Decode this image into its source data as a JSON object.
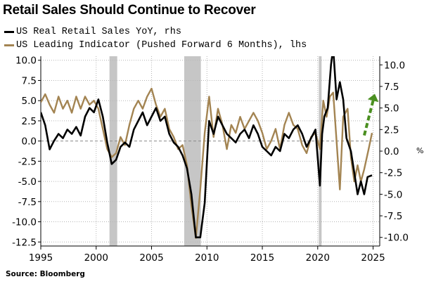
{
  "title": "Retail Sales Should Continue to Recover",
  "source": "Source: Bloomberg",
  "chart_data": {
    "type": "line",
    "title": "Retail Sales Should Continue to Recover",
    "xlim": [
      1995,
      2025.6
    ],
    "x_ticks": [
      1995,
      2000,
      2005,
      2010,
      2015,
      2020,
      2025
    ],
    "left_axis": {
      "ylim": [
        -13,
        10.5
      ],
      "ticks": [
        10.0,
        7.5,
        5.0,
        2.5,
        0.0,
        -2.5,
        -5.0,
        -7.5,
        -10.0,
        -12.5
      ],
      "tick_labels": [
        "10.0",
        "7.5",
        "5.0",
        "2.5",
        "0.0",
        "-2.5",
        "-5.0",
        "-7.5",
        "-10.0",
        "-12.5"
      ]
    },
    "right_axis": {
      "ylim": [
        -11.0,
        11.0
      ],
      "ticks": [
        10.0,
        7.5,
        5.0,
        2.5,
        0.0,
        -2.5,
        -5.0,
        -7.5,
        -10.0
      ],
      "tick_labels": [
        "10.0",
        "7.5",
        "5.0",
        "2.5",
        "0.0",
        "-2.5",
        "-5.0",
        "-7.5",
        "-10.0"
      ],
      "unit": "%"
    },
    "zero_line": 0,
    "grid": true,
    "recessions": [
      [
        2001.2,
        2001.9
      ],
      [
        2007.95,
        2009.45
      ],
      [
        2020.1,
        2020.35
      ]
    ],
    "series": [
      {
        "name": "US Real Retail Sales YoY, rhs",
        "axis": "right",
        "color": "#000000",
        "x": [
          1995.0,
          1995.4,
          1995.8,
          1996.2,
          1996.6,
          1997.0,
          1997.4,
          1997.8,
          1998.2,
          1998.6,
          1999.0,
          1999.4,
          1999.8,
          2000.2,
          2000.6,
          2001.0,
          2001.4,
          2001.8,
          2002.2,
          2002.6,
          2003.0,
          2003.4,
          2003.8,
          2004.2,
          2004.6,
          2005.0,
          2005.4,
          2005.8,
          2006.2,
          2006.6,
          2007.0,
          2007.4,
          2007.8,
          2008.2,
          2008.6,
          2009.0,
          2009.4,
          2009.8,
          2010.2,
          2010.6,
          2011.0,
          2011.4,
          2011.8,
          2012.2,
          2012.6,
          2013.0,
          2013.4,
          2013.8,
          2014.2,
          2014.6,
          2015.0,
          2015.4,
          2015.8,
          2016.2,
          2016.6,
          2017.0,
          2017.4,
          2017.8,
          2018.2,
          2018.6,
          2019.0,
          2019.4,
          2019.8,
          2020.2,
          2020.4,
          2020.6,
          2020.9,
          2021.2,
          2021.4,
          2021.7,
          2022.0,
          2022.3,
          2022.6,
          2023.0,
          2023.3,
          2023.6,
          2023.9,
          2024.2,
          2024.5,
          2024.9
        ],
        "values": [
          4.5,
          3.0,
          0.2,
          1.2,
          2.0,
          1.5,
          2.5,
          2.0,
          2.8,
          1.8,
          4.0,
          5.0,
          4.5,
          6.0,
          4.0,
          1.0,
          -1.5,
          -1.0,
          0.5,
          1.0,
          0.5,
          2.5,
          3.5,
          4.5,
          3.0,
          4.0,
          5.0,
          3.5,
          4.0,
          2.0,
          1.0,
          0.5,
          -0.5,
          -2.0,
          -5.0,
          -10.0,
          -10.0,
          -6.0,
          3.5,
          2.0,
          4.0,
          3.0,
          2.0,
          1.5,
          1.0,
          2.0,
          2.5,
          1.5,
          3.0,
          2.0,
          0.5,
          0.0,
          -0.5,
          0.5,
          0.0,
          2.0,
          1.5,
          2.5,
          3.0,
          2.0,
          0.5,
          1.5,
          2.5,
          -4.0,
          2.0,
          4.0,
          5.0,
          10.0,
          12.0,
          6.0,
          8.0,
          6.0,
          1.5,
          0.0,
          -2.5,
          -5.0,
          -3.5,
          -5.0,
          -3.0,
          -2.8
        ]
      },
      {
        "name": "US Leading Indicator (Pushed Forward 6 Months), lhs",
        "axis": "left",
        "color": "#a38452",
        "x": [
          1995.0,
          1995.4,
          1995.8,
          1996.2,
          1996.6,
          1997.0,
          1997.4,
          1997.8,
          1998.2,
          1998.6,
          1999.0,
          1999.4,
          1999.8,
          2000.2,
          2000.6,
          2001.0,
          2001.4,
          2001.8,
          2002.2,
          2002.6,
          2003.0,
          2003.4,
          2003.8,
          2004.2,
          2004.6,
          2005.0,
          2005.4,
          2005.8,
          2006.2,
          2006.6,
          2007.0,
          2007.4,
          2007.8,
          2008.2,
          2008.6,
          2009.0,
          2009.4,
          2009.8,
          2010.2,
          2010.6,
          2011.0,
          2011.4,
          2011.8,
          2012.2,
          2012.6,
          2013.0,
          2013.4,
          2013.8,
          2014.2,
          2014.6,
          2015.0,
          2015.4,
          2015.8,
          2016.2,
          2016.6,
          2017.0,
          2017.4,
          2017.8,
          2018.2,
          2018.6,
          2019.0,
          2019.4,
          2019.8,
          2020.2,
          2020.5,
          2020.8,
          2021.1,
          2021.4,
          2021.7,
          2022.0,
          2022.3,
          2022.7,
          2023.0,
          2023.3,
          2023.6,
          2023.9,
          2024.2,
          2024.6,
          2024.9
        ],
        "values": [
          4.8,
          5.8,
          4.5,
          3.5,
          5.5,
          4.0,
          5.0,
          3.5,
          5.5,
          4.0,
          5.5,
          4.5,
          5.0,
          4.0,
          1.5,
          -1.0,
          -2.0,
          -1.5,
          0.5,
          -0.5,
          2.0,
          4.0,
          5.0,
          4.0,
          5.5,
          6.5,
          4.5,
          3.0,
          4.0,
          1.5,
          0.5,
          -1.0,
          -0.5,
          -3.0,
          -8.0,
          -12.0,
          -6.0,
          1.0,
          5.5,
          0.5,
          4.0,
          2.0,
          -1.0,
          2.0,
          1.0,
          3.0,
          1.5,
          2.5,
          3.5,
          2.5,
          1.0,
          -1.0,
          0.0,
          1.5,
          -1.0,
          2.0,
          3.5,
          2.0,
          1.5,
          -0.5,
          -1.5,
          0.5,
          1.0,
          -1.0,
          5.0,
          3.0,
          5.5,
          6.0,
          0.0,
          -6.0,
          3.0,
          4.0,
          -2.0,
          -5.0,
          -3.0,
          -5.0,
          -3.5,
          -1.0,
          1.0
        ]
      }
    ],
    "annotation": "green dashed upward arrow"
  },
  "colors": {
    "recession": "#c6c6c6",
    "grid": "#b5b5b5",
    "zero": "#8a8a8a",
    "arrow": "#4a8f20"
  },
  "legend_swatches": {
    "black": "#000000",
    "tan": "#a38452"
  }
}
